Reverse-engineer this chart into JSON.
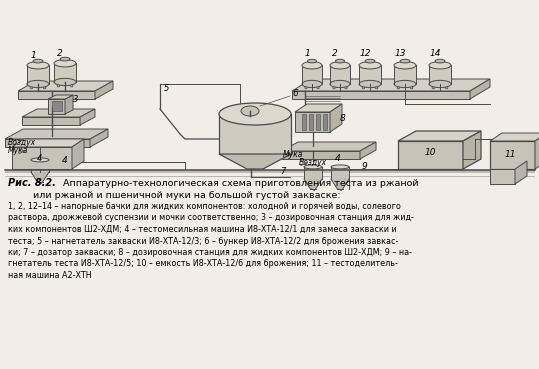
{
  "background_color": "#f2ede6",
  "title_bold": "Рис. 8.2.",
  "title_normal": " Аппаратурно-технологическая схема приготовления теста из ржаной",
  "title_line2": "или ржаной и пшеничной муки на большой густой закваске:",
  "caption_lines": [
    "1, 2, 12–14 – напорные бачки для жидких компонентов: холодной и горячей воды, солевого",
    "раствора, дрожжевой суспензии и мочки соответственно; 3 – дозировочная станция для жид-",
    "ких компонентов Ш2-ХДМ; 4 – тестомесильная машина И8-ХТА-12/1 для замеса закваски и",
    "теста; 5 – нагнетатель закваски И8-ХТА-12/3; 6 – бункер И8-ХТА-12/2 для брожения завкас-",
    "ки; 7 – дозатор закваски; 8 – дозировочная станция для жидких компонентов Ш2-ХДМ; 9 – на-",
    "гнетатель теста И8-ХТА-12/5; 10 – емкость И8-ХТА-12/6 для брожения; 11 – тестоделитель-",
    "ная машина А2-ХТН"
  ],
  "fig_width": 5.39,
  "fig_height": 3.69,
  "dpi": 100
}
